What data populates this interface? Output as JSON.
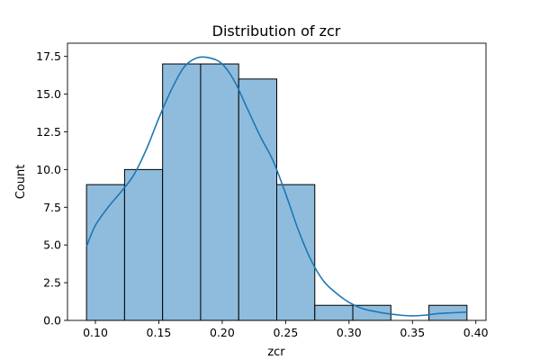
{
  "chart_data": {
    "type": "bar",
    "subtype": "histogram-with-kde",
    "title": "Distribution of zcr",
    "xlabel": "zcr",
    "ylabel": "Count",
    "xlim": [
      0.078,
      0.408
    ],
    "ylim": [
      0,
      18.375
    ],
    "x_ticks": [
      0.1,
      0.15,
      0.2,
      0.25,
      0.3,
      0.35,
      0.4
    ],
    "x_tick_labels": [
      "0.10",
      "0.15",
      "0.20",
      "0.25",
      "0.30",
      "0.35",
      "0.40"
    ],
    "y_ticks": [
      0,
      2.5,
      5,
      7.5,
      10,
      12.5,
      15,
      17.5
    ],
    "y_tick_labels": [
      "0.0",
      "2.5",
      "5.0",
      "7.5",
      "10.0",
      "12.5",
      "15.0",
      "17.5"
    ],
    "bins": [
      {
        "start": 0.093,
        "end": 0.123,
        "count": 9
      },
      {
        "start": 0.123,
        "end": 0.153,
        "count": 10
      },
      {
        "start": 0.153,
        "end": 0.183,
        "count": 17
      },
      {
        "start": 0.183,
        "end": 0.213,
        "count": 17
      },
      {
        "start": 0.213,
        "end": 0.243,
        "count": 16
      },
      {
        "start": 0.243,
        "end": 0.273,
        "count": 9
      },
      {
        "start": 0.273,
        "end": 0.303,
        "count": 1
      },
      {
        "start": 0.303,
        "end": 0.333,
        "count": 1
      },
      {
        "start": 0.333,
        "end": 0.363,
        "count": 0
      },
      {
        "start": 0.363,
        "end": 0.393,
        "count": 1
      }
    ],
    "kde": {
      "x": [
        0.093,
        0.1,
        0.11,
        0.12,
        0.13,
        0.14,
        0.15,
        0.16,
        0.17,
        0.18,
        0.19,
        0.2,
        0.21,
        0.22,
        0.23,
        0.24,
        0.25,
        0.26,
        0.27,
        0.28,
        0.29,
        0.3,
        0.31,
        0.32,
        0.33,
        0.34,
        0.35,
        0.36,
        0.37,
        0.38,
        0.393
      ],
      "y": [
        4.9,
        6.3,
        7.5,
        8.5,
        9.6,
        11.3,
        13.4,
        15.3,
        16.8,
        17.4,
        17.4,
        17.0,
        15.8,
        14.0,
        12.2,
        10.6,
        8.4,
        6.0,
        4.0,
        2.6,
        1.8,
        1.2,
        0.8,
        0.6,
        0.45,
        0.35,
        0.3,
        0.35,
        0.45,
        0.5,
        0.55
      ]
    },
    "colors": {
      "bar_fill": "#8fbcdd",
      "bar_edge": "#000000",
      "kde_line": "#1f77b4"
    },
    "grid": false,
    "legend": "none"
  }
}
